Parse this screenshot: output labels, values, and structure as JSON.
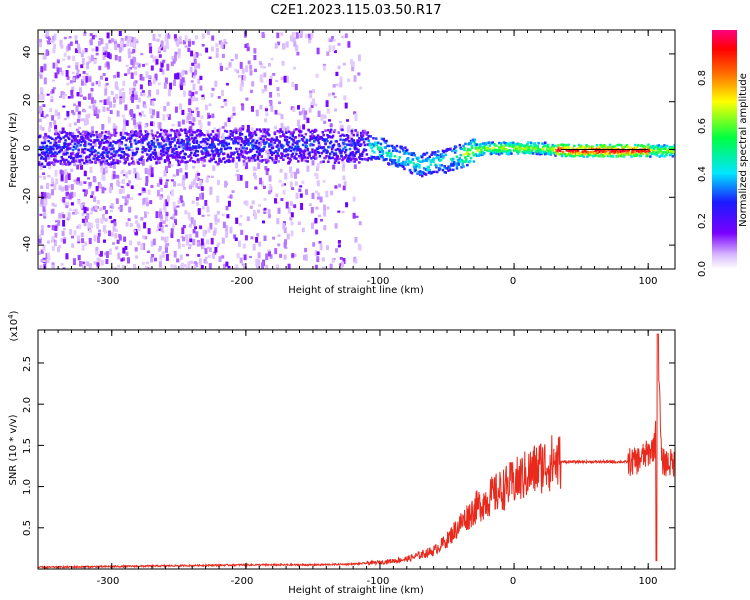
{
  "title": "C2E1.2023.115.03.50.R17",
  "chart_data": [
    {
      "type": "heatmap",
      "xlabel": "Height of straight line (km)",
      "ylabel": "Frequency (Hz)",
      "xlim": [
        -355,
        120
      ],
      "ylim": [
        -50,
        50
      ],
      "x_ticks": [
        "-300",
        "-200",
        "-100",
        "0",
        "100"
      ],
      "y_ticks": [
        "-40",
        "-20",
        "0",
        "20",
        "40"
      ],
      "colorbar": {
        "label": "Normalized spectral amplitude",
        "range": [
          0.0,
          1.0
        ],
        "ticks": [
          "0.0",
          "0.2",
          "0.4",
          "0.6",
          "0.8"
        ]
      },
      "trace_center_hz": [
        {
          "x": -350,
          "y": 1
        },
        {
          "x": -300,
          "y": 1
        },
        {
          "x": -250,
          "y": 2
        },
        {
          "x": -200,
          "y": 2
        },
        {
          "x": -150,
          "y": 2
        },
        {
          "x": -120,
          "y": 2
        },
        {
          "x": -100,
          "y": 1
        },
        {
          "x": -90,
          "y": -2
        },
        {
          "x": -80,
          "y": -4
        },
        {
          "x": -70,
          "y": -6
        },
        {
          "x": -60,
          "y": -5
        },
        {
          "x": -50,
          "y": -4
        },
        {
          "x": -40,
          "y": -2
        },
        {
          "x": -30,
          "y": 0
        },
        {
          "x": -20,
          "y": 1
        },
        {
          "x": 0,
          "y": 1
        },
        {
          "x": 20,
          "y": 1
        },
        {
          "x": 40,
          "y": 0
        },
        {
          "x": 80,
          "y": 0
        },
        {
          "x": 100,
          "y": 0
        },
        {
          "x": 120,
          "y": 0
        }
      ]
    },
    {
      "type": "line",
      "xlabel": "Height of straight line (km)",
      "ylabel": "SNR (10 * v/v)",
      "y_multiplier": "(x10",
      "y_multiplier_exp": "4",
      "y_multiplier_close": ")",
      "xlim": [
        -355,
        120
      ],
      "ylim": [
        0,
        2.9
      ],
      "x_ticks": [
        "-300",
        "-200",
        "-100",
        "0",
        "100"
      ],
      "y_ticks": [
        "0.5",
        "1.0",
        "1.5",
        "2.0",
        "2.5"
      ],
      "series": [
        {
          "color": "#e8291c",
          "x": [
            -355,
            -300,
            -250,
            -200,
            -150,
            -120,
            -100,
            -80,
            -60,
            -50,
            -40,
            -30,
            -20,
            -10,
            0,
            10,
            20,
            30,
            40,
            60,
            80,
            90,
            95,
            100,
            105,
            107,
            110,
            120
          ],
          "y": [
            0.02,
            0.03,
            0.04,
            0.05,
            0.05,
            0.06,
            0.08,
            0.12,
            0.22,
            0.35,
            0.55,
            0.72,
            0.85,
            0.95,
            1.05,
            1.15,
            1.25,
            1.3,
            1.3,
            1.3,
            1.3,
            1.3,
            1.35,
            1.4,
            1.5,
            2.85,
            1.3,
            1.28
          ]
        }
      ]
    }
  ]
}
